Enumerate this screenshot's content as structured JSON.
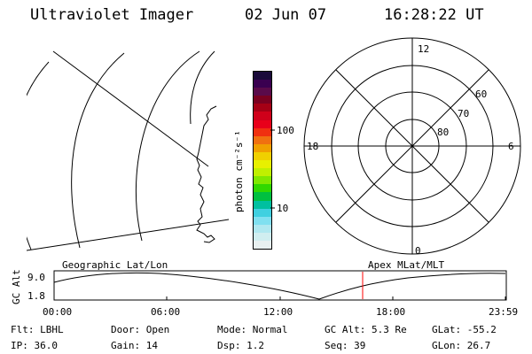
{
  "header": {
    "instrument": "Ultraviolet Imager",
    "date": "02 Jun 07",
    "time": "16:28:22 UT"
  },
  "colorbar": {
    "unit_label": "photon cm⁻²s⁻¹",
    "tick_100": "100",
    "tick_10": "10",
    "colors": [
      "#1a0a3a",
      "#3a0050",
      "#5a0a4a",
      "#7a0020",
      "#a50015",
      "#d0001a",
      "#e8001a",
      "#f03010",
      "#f07010",
      "#f0a000",
      "#f0d000",
      "#e8f000",
      "#c0f000",
      "#80e800",
      "#30d800",
      "#00c040",
      "#00c0a0",
      "#40d0e0",
      "#80e0f0",
      "#b0e8f0",
      "#d0eef0",
      "#e8f0f0"
    ]
  },
  "polar": {
    "lt_labels": {
      "top": "12",
      "left": "18",
      "right": "6",
      "bottom": "0"
    },
    "lat_labels": [
      "60",
      "70",
      "80"
    ]
  },
  "timeline": {
    "left_label": "Geographic Lat/Lon",
    "right_label": "Apex MLat/MLT",
    "axis_title": "GC Alt",
    "y_max": "9.0",
    "y_min": "1.8",
    "x_ticks": [
      "00:00",
      "06:00",
      "12:00",
      "18:00",
      "23:59"
    ],
    "marker_color": "#ff0000"
  },
  "status": {
    "row1": [
      {
        "key": "Flt:",
        "value": "LBHL"
      },
      {
        "key": "Door:",
        "value": "Open"
      },
      {
        "key": "Mode:",
        "value": "Normal"
      },
      {
        "key": "GC Alt:",
        "value": "5.3 Re"
      },
      {
        "key": "GLat:",
        "value": "-55.2"
      }
    ],
    "row2": [
      {
        "key": "IP:",
        "value": "36.0"
      },
      {
        "key": "Gain:",
        "value": "14"
      },
      {
        "key": "Dsp:",
        "value": "1.2"
      },
      {
        "key": "Seq:",
        "value": "39"
      },
      {
        "key": "GLon:",
        "value": "26.7"
      }
    ]
  }
}
